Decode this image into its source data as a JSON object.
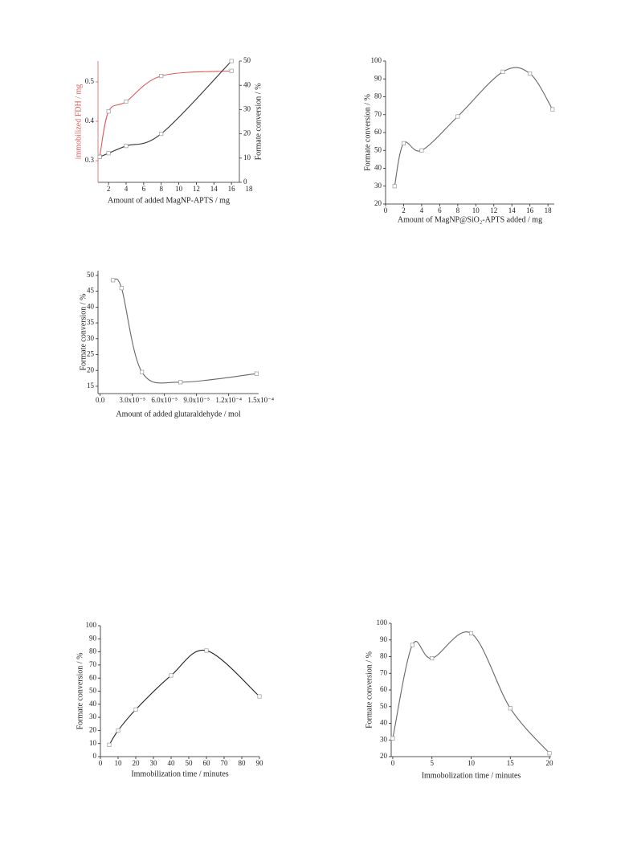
{
  "chart_data": [
    {
      "type": "line",
      "xlabel": "Amount of added MagNP-APTS / mg",
      "ylabel": "immobilized FDH / mg",
      "y2label": "Formate conversion / %",
      "x": [
        1,
        2,
        4,
        8,
        16
      ],
      "series": [
        {
          "color": "#e05a5a",
          "values": [
            0.31,
            0.425,
            0.45,
            0.515,
            0.528
          ]
        },
        {
          "color": "#333333",
          "axis": "y2",
          "values": [
            10.5,
            12,
            15,
            20,
            50
          ]
        }
      ],
      "xlim": [
        0.8,
        16.9
      ],
      "xticks": [
        2,
        4,
        6,
        8,
        10,
        12,
        14,
        16,
        18
      ],
      "ylim": [
        0.245,
        0.553
      ],
      "yticks": [
        0.3,
        0.4,
        0.5
      ],
      "y2lim": [
        0,
        50
      ],
      "y2ticks": [
        0,
        10,
        20,
        30,
        40,
        50
      ]
    },
    {
      "type": "line",
      "xlabel": "Amount of MagNP@SiO₂-APTS added / mg",
      "ylabel": "Formate conversion / %",
      "x": [
        1,
        2,
        4,
        8,
        13,
        16,
        18.5
      ],
      "series": [
        {
          "color": "#666666",
          "values": [
            30,
            54,
            50,
            69,
            94,
            93,
            73
          ]
        }
      ],
      "xlim": [
        0,
        18.7
      ],
      "xticks": [
        0,
        2,
        4,
        6,
        8,
        10,
        12,
        14,
        16,
        18
      ],
      "ylim": [
        20,
        100
      ],
      "yticks": [
        20,
        30,
        40,
        50,
        60,
        70,
        80,
        90,
        100
      ]
    },
    {
      "type": "line",
      "xlabel": "Amount of added glutaraldehyde / mol",
      "ylabel": "Formate conversion / %",
      "x": [
        1.2e-05,
        2e-05,
        3.9e-05,
        7.5e-05,
        0.000146
      ],
      "series": [
        {
          "color": "#666666",
          "values": [
            48.5,
            46,
            19.5,
            16.3,
            19
          ]
        }
      ],
      "xlim": [
        -2e-06,
        0.000148
      ],
      "xticks": [
        {
          "value": 0,
          "label": "0.0"
        },
        {
          "value": 3e-05,
          "label": "3.0x10⁻⁵"
        },
        {
          "value": 6e-05,
          "label": "6.0x10⁻⁵"
        },
        {
          "value": 9e-05,
          "label": "9.0x10⁻⁵"
        },
        {
          "value": 0.00012,
          "label": "1.2x10⁻⁴"
        },
        {
          "value": 0.00015,
          "label": "1.5x10⁻⁴"
        }
      ],
      "ylim": [
        12.7,
        51.5
      ],
      "yticks": [
        15,
        20,
        25,
        30,
        35,
        40,
        45,
        50
      ]
    },
    {
      "type": "line",
      "xlabel": "Immobilization time / minutes",
      "ylabel": "Formate conversion / %",
      "x": [
        5,
        10,
        20,
        40,
        60,
        90
      ],
      "series": [
        {
          "color": "#222222",
          "values": [
            9,
            20,
            36,
            62,
            81,
            46
          ]
        }
      ],
      "xlim": [
        0,
        90
      ],
      "xticks": [
        0,
        10,
        20,
        30,
        40,
        50,
        60,
        70,
        80,
        90
      ],
      "ylim": [
        0,
        100
      ],
      "yticks": [
        0,
        10,
        20,
        30,
        40,
        50,
        60,
        70,
        80,
        90,
        100
      ]
    },
    {
      "type": "line",
      "xlabel": "Immobolization time / minutes",
      "ylabel": "Formate conversion / %",
      "x": [
        0,
        2.5,
        5,
        10,
        15,
        20
      ],
      "series": [
        {
          "color": "#666666",
          "values": [
            31,
            87,
            79,
            94,
            49,
            22
          ]
        }
      ],
      "xlim": [
        -0.2,
        20.2
      ],
      "xticks": [
        0,
        5,
        10,
        15,
        20
      ],
      "ylim": [
        20,
        100
      ],
      "yticks": [
        20,
        30,
        40,
        50,
        60,
        70,
        80,
        90,
        100
      ]
    }
  ]
}
